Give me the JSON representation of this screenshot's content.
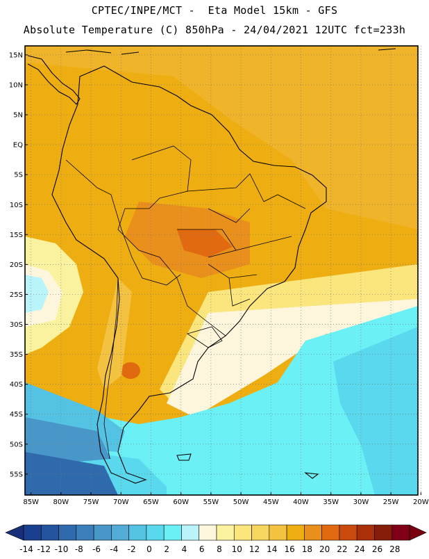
{
  "header": {
    "line1": "CPTEC/INPE/MCT -  Eta Model 15km - GFS",
    "line2": "Absolute Temperature (C) 850hPa - 24/04/2021 12UTC fct=233h"
  },
  "map": {
    "region": "South America",
    "lat_labels": [
      "15N",
      "10N",
      "5N",
      "EQ",
      "5S",
      "10S",
      "15S",
      "20S",
      "25S",
      "30S",
      "35S",
      "40S",
      "45S",
      "50S",
      "55S"
    ],
    "lon_labels": [
      "85W",
      "80W",
      "75W",
      "70W",
      "65W",
      "60W",
      "55W",
      "50W",
      "45W",
      "40W",
      "35W",
      "30W",
      "25W",
      "20W"
    ],
    "lat_range": [
      -58.5,
      16.5
    ],
    "lon_range": [
      -86,
      -20.5
    ],
    "grid": "dotted"
  },
  "colorbar": {
    "labels": [
      "-14",
      "-12",
      "-10",
      "-8",
      "-6",
      "-4",
      "-2",
      "0",
      "2",
      "4",
      "6",
      "8",
      "10",
      "12",
      "14",
      "16",
      "18",
      "20",
      "22",
      "24",
      "26",
      "28"
    ],
    "colors": [
      "#1a3f8f",
      "#2453a0",
      "#2f6aad",
      "#3b80bb",
      "#4996c8",
      "#53acd5",
      "#54c3e3",
      "#5ad9ee",
      "#6bf0f5",
      "#b9f4fb",
      "#fdf6dd",
      "#fbf2a0",
      "#fbe57d",
      "#f7d660",
      "#f2c240",
      "#eeae12",
      "#e88f1c",
      "#e16a10",
      "#c94a0c",
      "#a93008",
      "#861d0a",
      "#820017"
    ],
    "min_arrow_color": "#1a2f7a",
    "max_arrow_color": "#7a0010"
  }
}
